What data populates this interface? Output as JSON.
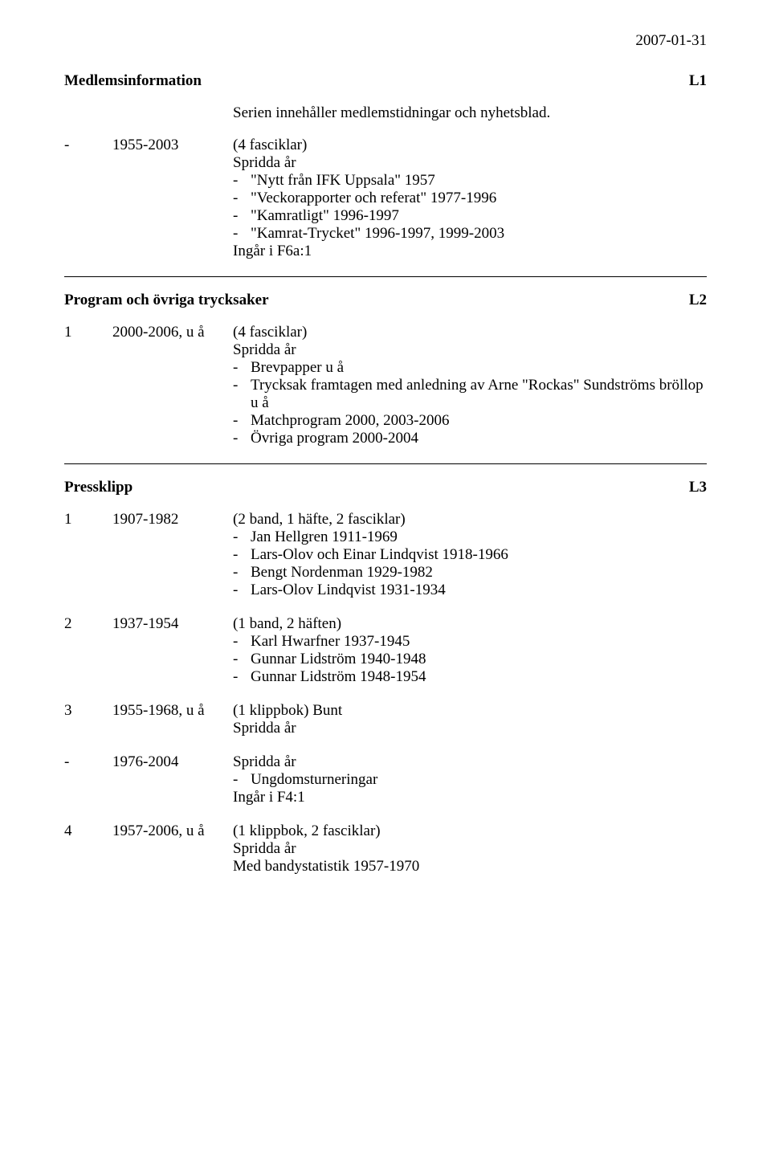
{
  "date": "2007-01-31",
  "sec1": {
    "title": "Medlemsinformation",
    "code": "L1",
    "subtitle": "Serien innehåller medlemstidningar och nyhetsblad.",
    "entry": {
      "col1": "-",
      "col2": "1955-2003",
      "main": "(4 fasciklar)",
      "lines": [
        "Spridda år"
      ],
      "bullets": [
        "\"Nytt från IFK Uppsala\" 1957",
        "\"Veckorapporter och referat\" 1977-1996",
        "\"Kamratligt\" 1996-1997",
        "\"Kamrat-Trycket\" 1996-1997, 1999-2003"
      ],
      "tail": [
        "Ingår i F6a:1"
      ]
    }
  },
  "sec2": {
    "title": "Program och övriga trycksaker",
    "code": "L2",
    "entry": {
      "col1": "1",
      "col2": "2000-2006, u å",
      "main": "(4 fasciklar)",
      "lines": [
        "Spridda år"
      ],
      "bullets": [
        "Brevpapper u å",
        "Trycksak framtagen med anledning av Arne \"Rockas\" Sundströms bröllop u å",
        "Matchprogram 2000, 2003-2006",
        "Övriga program 2000-2004"
      ]
    }
  },
  "sec3": {
    "title": "Pressklipp",
    "code": "L3",
    "entries": [
      {
        "col1": "1",
        "col2": "1907-1982",
        "main": "(2 band, 1 häfte, 2 fasciklar)",
        "bullets": [
          "Jan Hellgren 1911-1969",
          "Lars-Olov och Einar Lindqvist 1918-1966",
          "Bengt Nordenman 1929-1982",
          "Lars-Olov Lindqvist 1931-1934"
        ]
      },
      {
        "col1": "2",
        "col2": "1937-1954",
        "main": "(1 band, 2 häften)",
        "bullets": [
          "Karl Hwarfner 1937-1945",
          "Gunnar Lidström 1940-1948",
          "Gunnar Lidström 1948-1954"
        ]
      },
      {
        "col1": "3",
        "col2": "1955-1968, u å",
        "main": "(1 klippbok) Bunt",
        "lines": [
          "Spridda år"
        ]
      },
      {
        "col1": "-",
        "col2": "1976-2004",
        "main": "Spridda år",
        "bullets": [
          "Ungdomsturneringar"
        ],
        "tail": [
          "Ingår i F4:1"
        ]
      },
      {
        "col1": "4",
        "col2": "1957-2006, u å",
        "main": "(1 klippbok, 2 fasciklar)",
        "lines": [
          "Spridda år",
          "Med bandystatistik 1957-1970"
        ]
      }
    ]
  }
}
